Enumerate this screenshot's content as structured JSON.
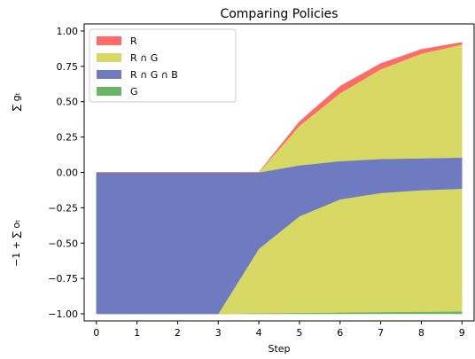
{
  "chart_data": {
    "type": "area",
    "title": "Comparing Policies",
    "xlabel": "Step",
    "ylabel_top": "∑ gₜ",
    "ylabel_bottom": "−1 + ∑ oₜ",
    "x": [
      0,
      1,
      2,
      3,
      4,
      5,
      6,
      7,
      8,
      9
    ],
    "x_ticks": [
      "0",
      "1",
      "2",
      "3",
      "4",
      "5",
      "6",
      "7",
      "8",
      "9"
    ],
    "y_ticks": [
      "1.00",
      "0.75",
      "0.50",
      "0.25",
      "0.00",
      "−0.25",
      "−0.50",
      "−0.75",
      "−1.00"
    ],
    "y_tick_values": [
      1.0,
      0.75,
      0.5,
      0.25,
      0.0,
      -0.25,
      -0.5,
      -0.75,
      -1.0
    ],
    "xlim": [
      -0.3,
      9.3
    ],
    "ylim": [
      -1.05,
      1.05
    ],
    "legend_position": "upper-left",
    "legend": [
      {
        "label": "R",
        "color": "#ff6b6b"
      },
      {
        "label": "R ∩ G",
        "color": "#d8d865"
      },
      {
        "label": "R ∩ G ∩ B",
        "color": "#6e7bc0"
      },
      {
        "label": "G",
        "color": "#6ab46a"
      }
    ],
    "top": {
      "B_upper": [
        0.0,
        0.0,
        0.0,
        0.0,
        0.0,
        0.05,
        0.08,
        0.095,
        0.1,
        0.105
      ],
      "RG_upper": [
        0.0,
        0.0,
        0.0,
        0.0,
        0.0,
        0.33,
        0.56,
        0.73,
        0.84,
        0.905
      ],
      "R_upper": [
        0.0,
        0.0,
        0.0,
        0.0,
        0.0,
        0.36,
        0.61,
        0.77,
        0.87,
        0.92
      ]
    },
    "bottom": {
      "B_upper": [
        0.0,
        0.0,
        0.0,
        0.0,
        0.0,
        0.05,
        0.08,
        0.095,
        0.1,
        0.105
      ],
      "RG_upper": [
        -1.0,
        -1.0,
        -1.0,
        -1.0,
        -0.54,
        -0.31,
        -0.19,
        -0.145,
        -0.125,
        -0.115
      ],
      "G_upper": [
        -1.0,
        -1.0,
        -1.0,
        -1.0,
        -0.995,
        -0.993,
        -0.99,
        -0.987,
        -0.985,
        -0.983
      ],
      "baseline": -1.0
    }
  }
}
